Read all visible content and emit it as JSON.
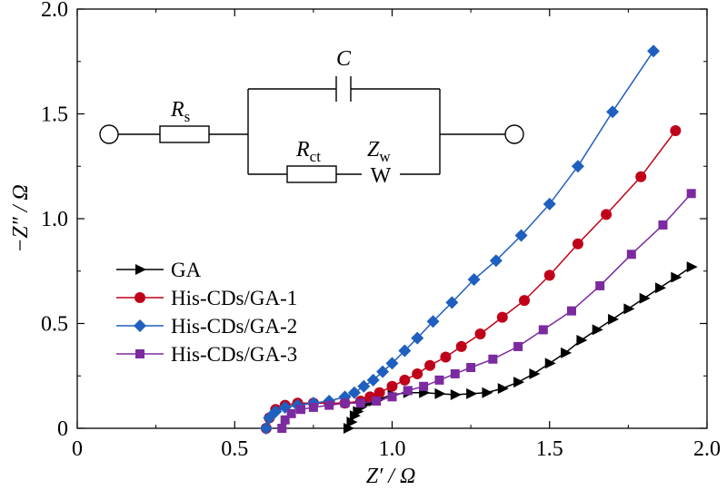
{
  "chart_data": {
    "type": "scatter",
    "xlabel": "Z′ / Ω",
    "ylabel": "−Z″ / Ω",
    "xlim": [
      0,
      2.0
    ],
    "ylim": [
      0,
      2.0
    ],
    "xticks": [
      "0",
      "0.5",
      "1.0",
      "1.5",
      "2.0"
    ],
    "yticks": [
      "0",
      "0.5",
      "1.0",
      "1.5",
      "2.0"
    ],
    "xtick_values": [
      0,
      0.5,
      1.0,
      1.5,
      2.0
    ],
    "ytick_values": [
      0,
      0.5,
      1.0,
      1.5,
      2.0
    ],
    "grid": false,
    "legend_position": "left-middle",
    "series": [
      {
        "name": "GA",
        "color": "#000000",
        "marker": "triangle-right",
        "x": [
          0.86,
          0.87,
          0.88,
          0.89,
          0.9,
          0.92,
          0.94,
          0.96,
          1.0,
          1.05,
          1.1,
          1.15,
          1.2,
          1.25,
          1.3,
          1.35,
          1.4,
          1.45,
          1.5,
          1.55,
          1.6,
          1.65,
          1.7,
          1.75,
          1.8,
          1.85,
          1.9,
          1.95
        ],
        "y": [
          0.0,
          0.03,
          0.06,
          0.08,
          0.1,
          0.12,
          0.13,
          0.14,
          0.16,
          0.17,
          0.17,
          0.165,
          0.16,
          0.165,
          0.17,
          0.19,
          0.22,
          0.26,
          0.31,
          0.36,
          0.42,
          0.47,
          0.52,
          0.57,
          0.62,
          0.67,
          0.72,
          0.77
        ]
      },
      {
        "name": "His-CDs/GA-1",
        "color": "#c0001a",
        "marker": "circle",
        "x": [
          0.6,
          0.61,
          0.63,
          0.66,
          0.7,
          0.75,
          0.8,
          0.85,
          0.9,
          0.93,
          0.96,
          1.0,
          1.04,
          1.08,
          1.12,
          1.17,
          1.22,
          1.28,
          1.35,
          1.42,
          1.5,
          1.59,
          1.68,
          1.79,
          1.9
        ],
        "y": [
          0.0,
          0.05,
          0.09,
          0.11,
          0.12,
          0.12,
          0.12,
          0.12,
          0.13,
          0.15,
          0.17,
          0.2,
          0.23,
          0.26,
          0.3,
          0.34,
          0.39,
          0.45,
          0.53,
          0.61,
          0.73,
          0.88,
          1.02,
          1.2,
          1.42
        ]
      },
      {
        "name": "His-CDs/GA-2",
        "color": "#1f5fbf",
        "marker": "diamond",
        "x": [
          0.6,
          0.61,
          0.63,
          0.66,
          0.7,
          0.75,
          0.8,
          0.85,
          0.88,
          0.91,
          0.94,
          0.97,
          1.0,
          1.04,
          1.08,
          1.13,
          1.19,
          1.26,
          1.33,
          1.41,
          1.5,
          1.59,
          1.7,
          1.83
        ],
        "y": [
          0.0,
          0.05,
          0.08,
          0.1,
          0.11,
          0.12,
          0.13,
          0.15,
          0.17,
          0.2,
          0.23,
          0.27,
          0.31,
          0.37,
          0.43,
          0.51,
          0.6,
          0.71,
          0.8,
          0.92,
          1.07,
          1.25,
          1.51,
          1.8
        ]
      },
      {
        "name": "His-CDs/GA-3",
        "color": "#7b2aa0",
        "marker": "square",
        "x": [
          0.65,
          0.66,
          0.68,
          0.71,
          0.75,
          0.8,
          0.85,
          0.9,
          0.95,
          1.0,
          1.05,
          1.1,
          1.15,
          1.2,
          1.25,
          1.32,
          1.4,
          1.48,
          1.57,
          1.66,
          1.76,
          1.86,
          1.95
        ],
        "y": [
          0.0,
          0.04,
          0.07,
          0.09,
          0.1,
          0.11,
          0.12,
          0.12,
          0.13,
          0.15,
          0.18,
          0.2,
          0.23,
          0.26,
          0.29,
          0.33,
          0.39,
          0.47,
          0.56,
          0.68,
          0.83,
          0.97,
          1.12
        ]
      }
    ]
  },
  "circuit": {
    "capacitor_label": "C",
    "rs_main": "R",
    "rs_sub": "s",
    "rct_main": "R",
    "rct_sub": "ct",
    "zw_main": "Z",
    "zw_sub": "w",
    "warburg_label": "W"
  }
}
